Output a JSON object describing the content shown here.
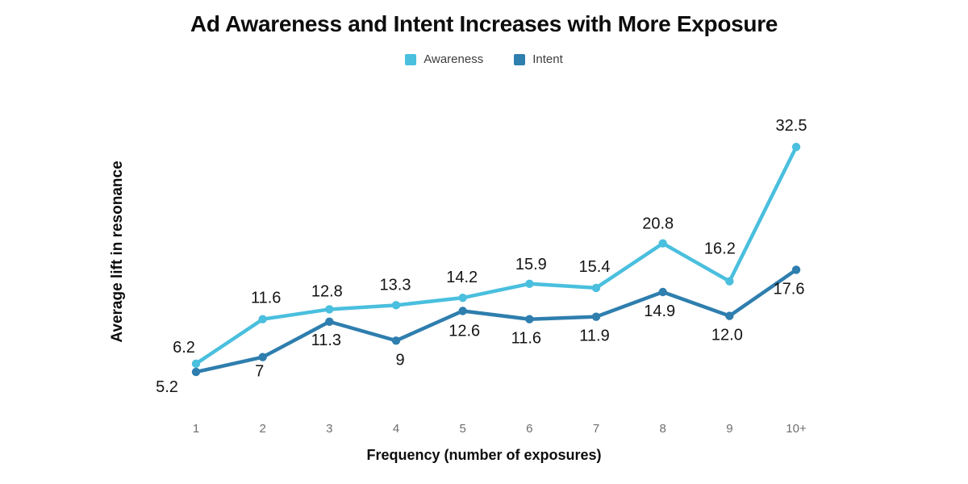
{
  "chart_data": {
    "type": "line",
    "title": "Ad Awareness and Intent Increases with More Exposure",
    "xlabel": "Frequency (number of exposures)",
    "ylabel": "Average lift in resonance",
    "categories": [
      "1",
      "2",
      "3",
      "4",
      "5",
      "6",
      "7",
      "8",
      "9",
      "10+"
    ],
    "ylim": [
      0,
      36
    ],
    "grid": false,
    "legend_position": "top-center",
    "marker": "circle",
    "series": [
      {
        "name": "Awareness",
        "color": "#4ABFDE",
        "values": [
          6.2,
          11.6,
          12.8,
          13.3,
          14.2,
          15.9,
          15.4,
          20.8,
          16.2,
          32.5
        ],
        "labels": [
          "6.2",
          "11.6",
          "12.8",
          "13.3",
          "14.2",
          "15.9",
          "15.4",
          "20.8",
          "16.2",
          "32.5"
        ],
        "label_side": "above",
        "label_offsets": [
          [
            -15,
            -14
          ],
          [
            4,
            -20
          ],
          [
            -3,
            -16
          ],
          [
            -1,
            -19
          ],
          [
            -1,
            -19
          ],
          [
            2,
            -18
          ],
          [
            -2,
            -20
          ],
          [
            -6,
            -18
          ],
          [
            -12,
            -34
          ],
          [
            -6,
            -20
          ]
        ]
      },
      {
        "name": "Intent",
        "color": "#2E7EAE",
        "values": [
          5.2,
          7,
          11.3,
          9,
          12.6,
          11.6,
          11.9,
          14.9,
          12.0,
          17.6
        ],
        "labels": [
          "5.2",
          "7",
          "11.3",
          "9",
          "12.6",
          "11.6",
          "11.9",
          "14.9",
          "12.0",
          "17.6"
        ],
        "label_side": "below",
        "label_offsets": [
          [
            -36,
            25
          ],
          [
            -4,
            24
          ],
          [
            -4,
            29
          ],
          [
            5,
            30
          ],
          [
            2,
            31
          ],
          [
            -4,
            30
          ],
          [
            -2,
            30
          ],
          [
            -4,
            30
          ],
          [
            -3,
            30
          ],
          [
            -9,
            30
          ]
        ]
      }
    ]
  }
}
